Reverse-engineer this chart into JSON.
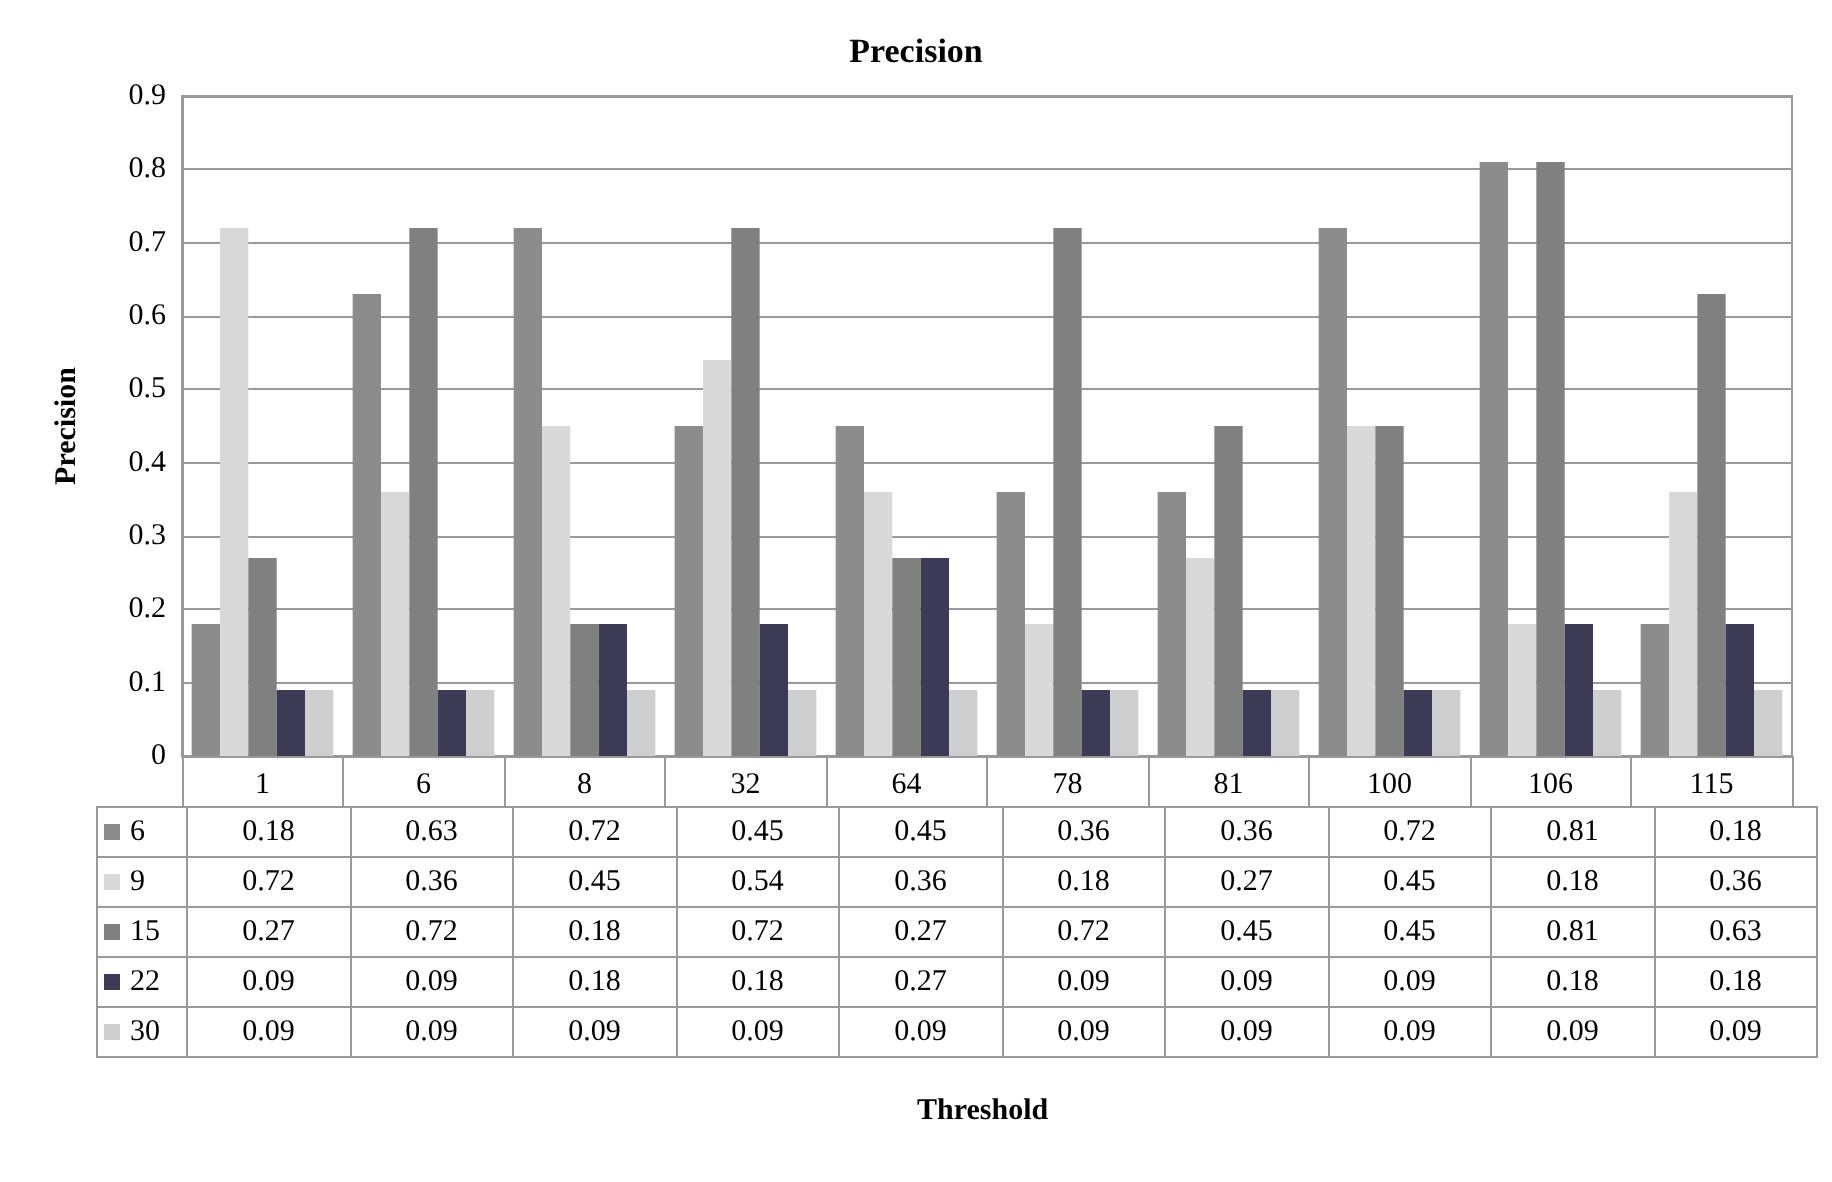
{
  "chart_data": {
    "type": "bar",
    "title": "Precision",
    "annotations": [
      "Threshold"
    ],
    "ylabel": "Precision",
    "categories": [
      "1",
      "6",
      "8",
      "32",
      "64",
      "78",
      "81",
      "100",
      "106",
      "115"
    ],
    "series": [
      {
        "name": "6",
        "color": "#8c8c8c",
        "values": [
          0.18,
          0.63,
          0.72,
          0.45,
          0.45,
          0.36,
          0.36,
          0.72,
          0.81,
          0.18
        ]
      },
      {
        "name": "9",
        "color": "#d9d9d9",
        "values": [
          0.72,
          0.36,
          0.45,
          0.54,
          0.36,
          0.18,
          0.27,
          0.45,
          0.18,
          0.36
        ]
      },
      {
        "name": "15",
        "color": "#808080",
        "values": [
          0.27,
          0.72,
          0.18,
          0.72,
          0.27,
          0.72,
          0.45,
          0.45,
          0.81,
          0.63
        ]
      },
      {
        "name": "22",
        "color": "#3b3b55",
        "values": [
          0.09,
          0.09,
          0.18,
          0.18,
          0.27,
          0.09,
          0.09,
          0.09,
          0.18,
          0.18
        ]
      },
      {
        "name": "30",
        "color": "#cfcfcf",
        "values": [
          0.09,
          0.09,
          0.09,
          0.09,
          0.09,
          0.09,
          0.09,
          0.09,
          0.09,
          0.09
        ]
      }
    ],
    "ylim": [
      0,
      0.9
    ],
    "yticks": [
      0,
      0.1,
      0.2,
      0.3,
      0.4,
      0.5,
      0.6,
      0.7,
      0.8,
      0.9
    ],
    "grid": "y",
    "legend": "bottom",
    "data_labels": true
  }
}
